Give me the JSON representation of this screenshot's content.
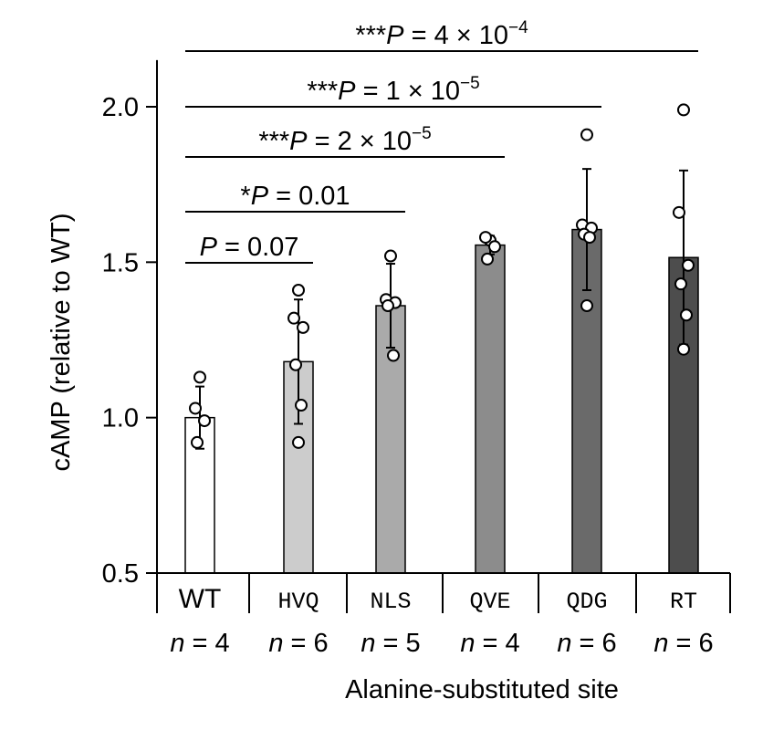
{
  "chart_data": {
    "type": "bar",
    "ylabel": "cAMP (relative to WT)",
    "xlabel": "Alanine-substituted site",
    "ylim": [
      0.5,
      2.15
    ],
    "yticks": [
      "0.5",
      "1.0",
      "1.5",
      "2.0"
    ],
    "categories": [
      "WT",
      "HVQ",
      "NLS",
      "QVE",
      "QDG",
      "RT"
    ],
    "n_labels": [
      "n = 4",
      "n = 6",
      "n = 5",
      "n = 4",
      "n = 6",
      "n = 6"
    ],
    "means": [
      1.0,
      1.18,
      1.36,
      1.555,
      1.605,
      1.515
    ],
    "errors": [
      0.1,
      0.2,
      0.135,
      0.03,
      0.195,
      0.28
    ],
    "bar_colors": [
      "#ffffff",
      "#cccccc",
      "#aaaaaa",
      "#8c8c8c",
      "#6a6a6a",
      "#4d4d4d"
    ],
    "points": [
      [
        1.13,
        1.03,
        0.99,
        0.92
      ],
      [
        1.41,
        1.32,
        1.29,
        1.17,
        1.04,
        0.92
      ],
      [
        1.52,
        1.38,
        1.37,
        1.36,
        1.2
      ],
      [
        1.57,
        1.58,
        1.55,
        1.51
      ],
      [
        1.91,
        1.62,
        1.61,
        1.59,
        1.58,
        1.36
      ],
      [
        1.99,
        1.66,
        1.49,
        1.43,
        1.33,
        1.22
      ]
    ],
    "comparisons": [
      {
        "from": "WT",
        "to": "HVQ",
        "label": "P = 0.07"
      },
      {
        "from": "WT",
        "to": "NLS",
        "label": "*P = 0.01"
      },
      {
        "from": "WT",
        "to": "QVE",
        "label": "***P = 2 × 10−5"
      },
      {
        "from": "WT",
        "to": "QDG",
        "label": "***P = 1 × 10−5"
      },
      {
        "from": "WT",
        "to": "RT",
        "label": "***P = 4 × 10−4"
      }
    ]
  }
}
